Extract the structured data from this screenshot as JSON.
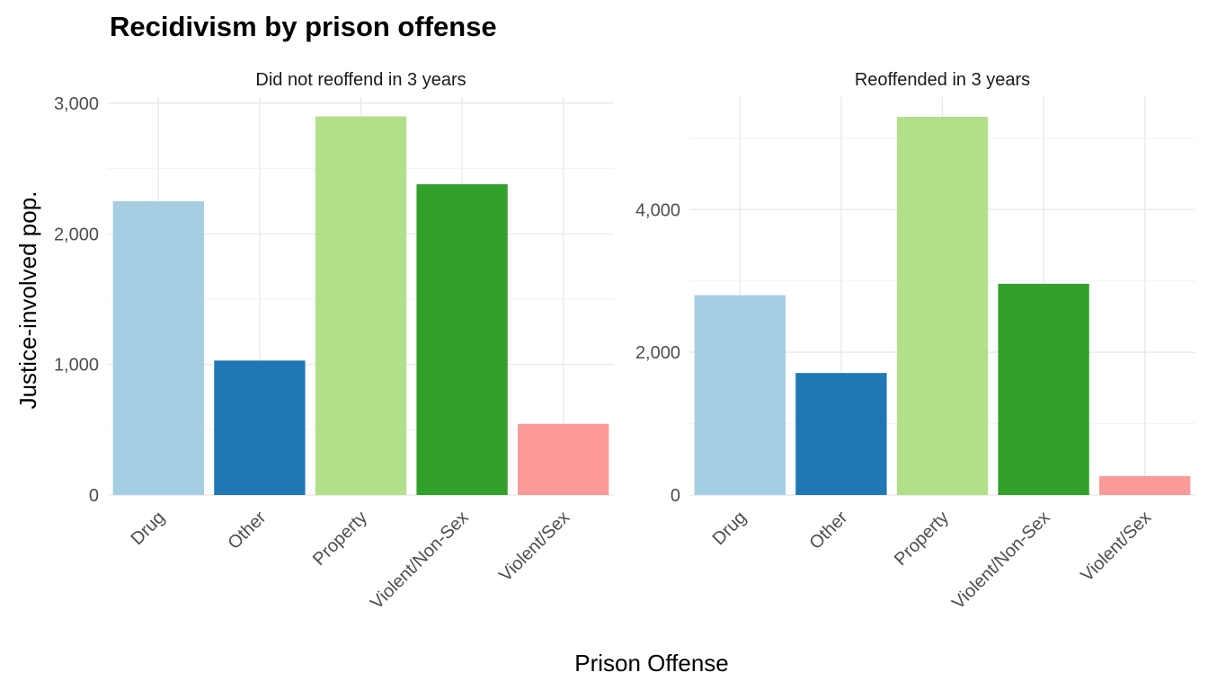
{
  "chart_data": {
    "type": "bar",
    "title": "Recidivism by prison offense",
    "xlabel": "Prison Offense",
    "ylabel": "Justice-involved pop.",
    "grid": true,
    "categories": [
      "Drug",
      "Other",
      "Property",
      "Violent/Non-Sex",
      "Violent/Sex"
    ],
    "colors": [
      "#a6cee3",
      "#1f78b4",
      "#b2df8a",
      "#33a02c",
      "#fb9a99"
    ],
    "panels": [
      {
        "strip": "Did not reoffend in 3 years",
        "values": [
          2250,
          1030,
          2900,
          2380,
          545
        ],
        "ylim": [
          0,
          3000
        ],
        "yticks": [
          0,
          1000,
          2000,
          3000
        ],
        "ytick_labels": [
          "0",
          "1,000",
          "2,000",
          "3,000"
        ]
      },
      {
        "strip": "Reoffended in 3 years",
        "values": [
          2800,
          1710,
          5300,
          2960,
          265
        ],
        "ylim": [
          0,
          5300
        ],
        "yticks": [
          0,
          2000,
          4000
        ],
        "ytick_labels": [
          "0",
          "2,000",
          "4,000"
        ]
      }
    ]
  }
}
